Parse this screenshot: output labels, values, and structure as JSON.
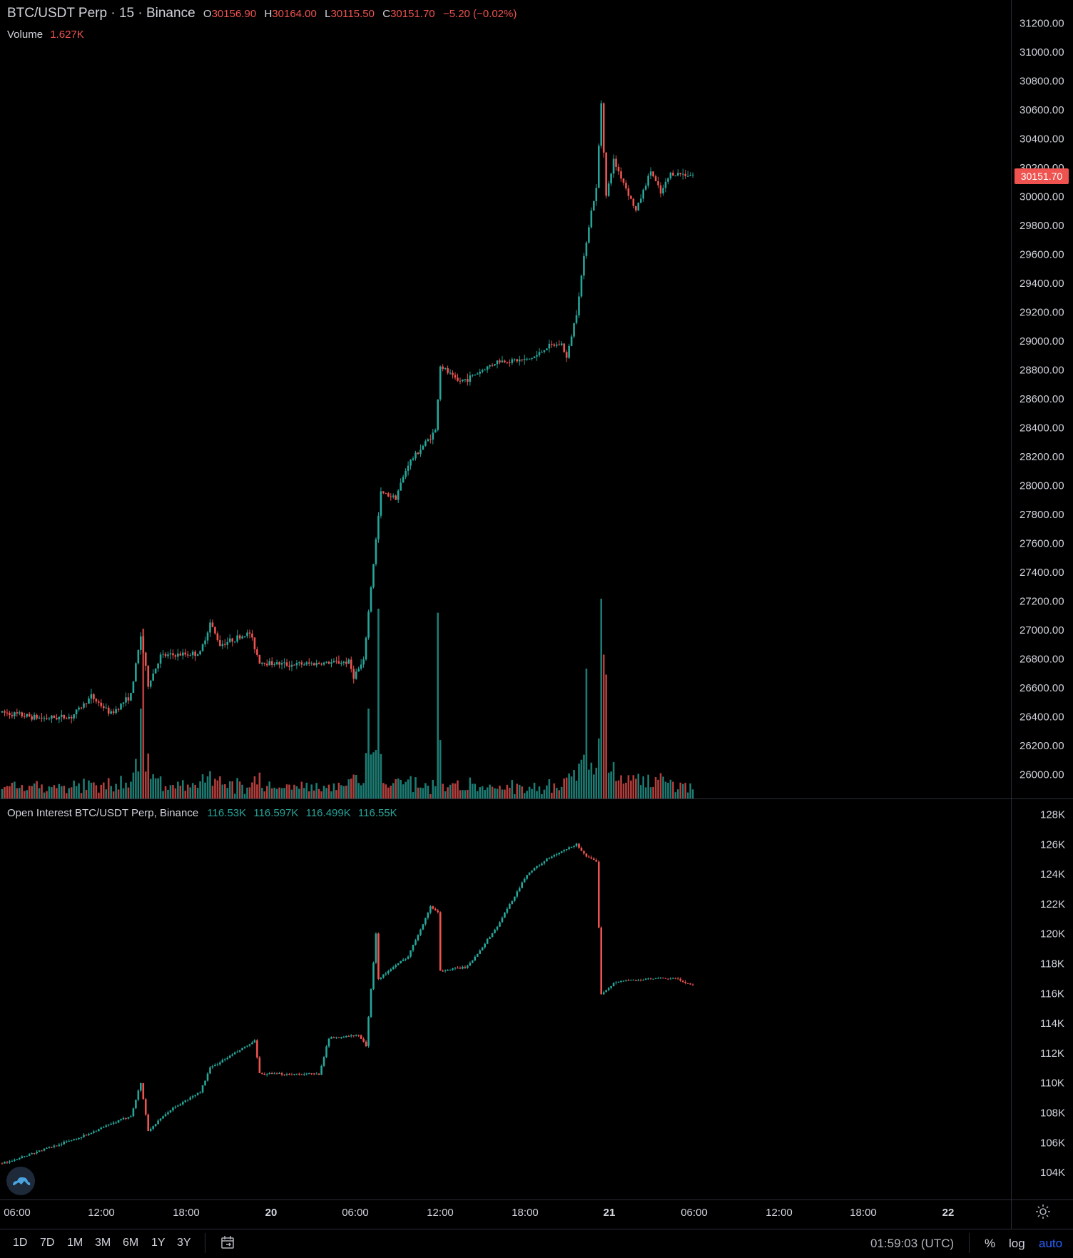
{
  "header": {
    "symbol": "BTC/USDT Perp · 15 · Binance",
    "o_label": "O",
    "o_value": "30156.90",
    "h_label": "H",
    "h_value": "30164.00",
    "l_label": "L",
    "l_value": "30115.50",
    "c_label": "C",
    "c_value": "30151.70",
    "change": "−5.20 (−0.02%)"
  },
  "volume_legend": {
    "label": "Volume",
    "value": "1.627K"
  },
  "oi_legend": {
    "label": "Open Interest BTC/USDT Perp, Binance",
    "values": [
      "116.53K",
      "116.597K",
      "116.499K",
      "116.55K"
    ]
  },
  "last_price_tag": "30151.70",
  "colors": {
    "up": "#26a69a",
    "down": "#ef5350",
    "background": "#000000",
    "accent": "#2962ff"
  },
  "price_axis_labels": [
    "31200.00",
    "31000.00",
    "30800.00",
    "30600.00",
    "30400.00",
    "30200.00",
    "30000.00",
    "29800.00",
    "29600.00",
    "29400.00",
    "29200.00",
    "29000.00",
    "28800.00",
    "28600.00",
    "28400.00",
    "28200.00",
    "28000.00",
    "27800.00",
    "27600.00",
    "27400.00",
    "27200.00",
    "27000.00",
    "26800.00",
    "26600.00",
    "26400.00",
    "26200.00",
    "26000.00"
  ],
  "oi_axis_labels": [
    "128K",
    "126K",
    "124K",
    "122K",
    "120K",
    "118K",
    "116K",
    "114K",
    "112K",
    "110K",
    "108K",
    "106K",
    "104K"
  ],
  "time_axis_labels": [
    {
      "text": "06:00",
      "bold": false
    },
    {
      "text": "12:00",
      "bold": false
    },
    {
      "text": "18:00",
      "bold": false
    },
    {
      "text": "20",
      "bold": true
    },
    {
      "text": "06:00",
      "bold": false
    },
    {
      "text": "12:00",
      "bold": false
    },
    {
      "text": "18:00",
      "bold": false
    },
    {
      "text": "21",
      "bold": true
    },
    {
      "text": "06:00",
      "bold": false
    },
    {
      "text": "12:00",
      "bold": false
    },
    {
      "text": "18:00",
      "bold": false
    },
    {
      "text": "22",
      "bold": true
    }
  ],
  "toolbar": {
    "timeframes": [
      "1D",
      "7D",
      "1M",
      "3M",
      "6M",
      "1Y",
      "3Y"
    ],
    "clock": "01:59:03 (UTC)",
    "percent": "%",
    "log": "log",
    "auto": "auto"
  },
  "icons": {
    "settings": "gear-icon",
    "compare": "go-to-date-icon",
    "logo": "cloud-logo-icon"
  },
  "chart_data": [
    {
      "type": "candlestick",
      "title": "BTC/USDT Perp · 15 · Binance",
      "interval": "15",
      "ylim": [
        25900,
        31300
      ],
      "x_start": "19 04:00",
      "x_end": "22 02:00",
      "keypoints": [
        {
          "t": "19 04:00",
          "price": 26430
        },
        {
          "t": "19 08:00",
          "price": 26390
        },
        {
          "t": "19 11:00",
          "price": 26400
        },
        {
          "t": "19 13:00",
          "price": 26540
        },
        {
          "t": "19 15:00",
          "price": 26420
        },
        {
          "t": "19 17:00",
          "price": 26550
        },
        {
          "t": "19 18:00",
          "price": 26960
        },
        {
          "t": "19 18:45",
          "price": 26620
        },
        {
          "t": "19 20:00",
          "price": 26820
        },
        {
          "t": "20 00:00",
          "price": 26840
        },
        {
          "t": "20 01:00",
          "price": 27050
        },
        {
          "t": "20 02:00",
          "price": 26900
        },
        {
          "t": "20 05:00",
          "price": 26980
        },
        {
          "t": "20 06:00",
          "price": 26780
        },
        {
          "t": "20 09:00",
          "price": 26760
        },
        {
          "t": "20 12:00",
          "price": 26770
        },
        {
          "t": "20 15:00",
          "price": 26780
        },
        {
          "t": "20 15:30",
          "price": 26680
        },
        {
          "t": "20 16:30",
          "price": 26780
        },
        {
          "t": "20 17:15",
          "price": 27300
        },
        {
          "t": "20 18:15",
          "price": 27950
        },
        {
          "t": "20 19:45",
          "price": 27920
        },
        {
          "t": "20 21:00",
          "price": 28150
        },
        {
          "t": "20 23:45",
          "price": 28380
        },
        {
          "t": "21 00:15",
          "price": 28830
        },
        {
          "t": "21 02:00",
          "price": 28720
        },
        {
          "t": "21 03:00",
          "price": 28740
        },
        {
          "t": "21 06:00",
          "price": 28860
        },
        {
          "t": "21 09:00",
          "price": 28870
        },
        {
          "t": "21 10:00",
          "price": 28900
        },
        {
          "t": "21 11:00",
          "price": 28960
        },
        {
          "t": "21 12:30",
          "price": 28980
        },
        {
          "t": "21 13:00",
          "price": 28880
        },
        {
          "t": "21 14:00",
          "price": 29200
        },
        {
          "t": "21 15:00",
          "price": 29700
        },
        {
          "t": "21 15:30",
          "price": 29900
        },
        {
          "t": "21 16:00",
          "price": 30050
        },
        {
          "t": "21 16:30",
          "price": 30650
        },
        {
          "t": "21 17:00",
          "price": 30000
        },
        {
          "t": "21 17:45",
          "price": 30250
        },
        {
          "t": "21 19:00",
          "price": 30060
        },
        {
          "t": "21 20:00",
          "price": 29900
        },
        {
          "t": "21 21:30",
          "price": 30180
        },
        {
          "t": "21 22:30",
          "price": 30020
        },
        {
          "t": "21 23:30",
          "price": 30160
        },
        {
          "t": "22 01:45",
          "price": 30151.7
        }
      ]
    },
    {
      "type": "bar",
      "title": "Volume",
      "last_value": "1.627K",
      "spikes": [
        {
          "t": "19 18:00",
          "rel": 0.45
        },
        {
          "t": "19 18:15",
          "rel": 0.85
        },
        {
          "t": "20 17:00",
          "rel": 0.45
        },
        {
          "t": "20 18:00",
          "rel": 0.95
        },
        {
          "t": "21 00:00",
          "rel": 0.93
        },
        {
          "t": "21 15:00",
          "rel": 0.65
        },
        {
          "t": "21 16:30",
          "rel": 1.0
        },
        {
          "t": "21 16:45",
          "rel": 0.72
        },
        {
          "t": "21 17:00",
          "rel": 0.62
        }
      ]
    },
    {
      "type": "candlestick",
      "title": "Open Interest BTC/USDT Perp, Binance",
      "ylim": [
        103000,
        129000
      ],
      "keypoints": [
        {
          "t": "19 04:00",
          "oi": 104600
        },
        {
          "t": "19 12:00",
          "oi": 106400
        },
        {
          "t": "19 17:00",
          "oi": 107800
        },
        {
          "t": "19 18:00",
          "oi": 110000
        },
        {
          "t": "19 18:45",
          "oi": 106800
        },
        {
          "t": "19 21:00",
          "oi": 108200
        },
        {
          "t": "20 00:00",
          "oi": 109400
        },
        {
          "t": "20 01:00",
          "oi": 111000
        },
        {
          "t": "20 05:30",
          "oi": 112800
        },
        {
          "t": "20 06:00",
          "oi": 110600
        },
        {
          "t": "20 12:00",
          "oi": 110600
        },
        {
          "t": "20 13:00",
          "oi": 113000
        },
        {
          "t": "20 16:00",
          "oi": 113200
        },
        {
          "t": "20 16:45",
          "oi": 112500
        },
        {
          "t": "20 17:45",
          "oi": 120000
        },
        {
          "t": "20 18:00",
          "oi": 117000
        },
        {
          "t": "20 21:00",
          "oi": 118500
        },
        {
          "t": "20 23:15",
          "oi": 121800
        },
        {
          "t": "21 00:00",
          "oi": 121500
        },
        {
          "t": "21 00:15",
          "oi": 117500
        },
        {
          "t": "21 03:00",
          "oi": 117800
        },
        {
          "t": "21 06:00",
          "oi": 120500
        },
        {
          "t": "21 09:00",
          "oi": 124000
        },
        {
          "t": "21 11:00",
          "oi": 125000
        },
        {
          "t": "21 14:00",
          "oi": 126000
        },
        {
          "t": "21 15:00",
          "oi": 125200
        },
        {
          "t": "21 16:00",
          "oi": 124800
        },
        {
          "t": "21 16:30",
          "oi": 116000
        },
        {
          "t": "21 18:00",
          "oi": 116800
        },
        {
          "t": "21 22:00",
          "oi": 117000
        },
        {
          "t": "22 00:00",
          "oi": 117000
        },
        {
          "t": "22 01:45",
          "oi": 116550
        }
      ]
    }
  ]
}
